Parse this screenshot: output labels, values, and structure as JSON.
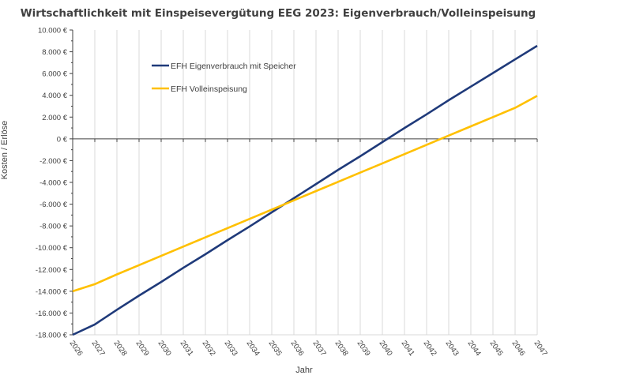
{
  "chart_data": {
    "type": "line",
    "title": "Wirtschaftlichkeit mit Einspeisevergütung EEG 2023: Eigenverbrauch/Volleinspeisung",
    "xlabel": "Jahr",
    "ylabel": "Kosten / Erlöse",
    "ylim": [
      -18000,
      10000
    ],
    "y_ticks": [
      "10.000 €",
      "8.000 €",
      "6.000 €",
      "4.000 €",
      "2.000 €",
      "0 €",
      "-2.000 €",
      "-4.000 €",
      "-6.000 €",
      "-8.000 €",
      "-10.000 €",
      "-12.000 €",
      "-14.000 €",
      "-16.000 €",
      "-18.000 €"
    ],
    "y_tick_values": [
      10000,
      8000,
      6000,
      4000,
      2000,
      0,
      -2000,
      -4000,
      -6000,
      -8000,
      -10000,
      -12000,
      -14000,
      -16000,
      -18000
    ],
    "x": [
      "2026",
      "2027",
      "2028",
      "2029",
      "2030",
      "2031",
      "2032",
      "2033",
      "2034",
      "2035",
      "2036",
      "2037",
      "2038",
      "2039",
      "2040",
      "2041",
      "2042",
      "2043",
      "2044",
      "2045",
      "2046",
      "2047"
    ],
    "grid": true,
    "legend_position": "top-left",
    "series": [
      {
        "name": "EFH Eigenverbrauch mit Speicher",
        "color": "#1f3a7a",
        "values": [
          -18000,
          -17050,
          -15700,
          -14400,
          -13150,
          -11850,
          -10600,
          -9300,
          -8050,
          -6750,
          -5450,
          -4150,
          -2850,
          -1600,
          -300,
          1000,
          2250,
          3550,
          4800,
          6050,
          7300,
          8550
        ]
      },
      {
        "name": "EFH Volleinspeisung",
        "color": "#ffc000",
        "values": [
          -14000,
          -13350,
          -12450,
          -11600,
          -10750,
          -9900,
          -9050,
          -8200,
          -7350,
          -6500,
          -5650,
          -4800,
          -3950,
          -3100,
          -2250,
          -1400,
          -550,
          300,
          1150,
          2000,
          2850,
          3950
        ]
      }
    ]
  }
}
